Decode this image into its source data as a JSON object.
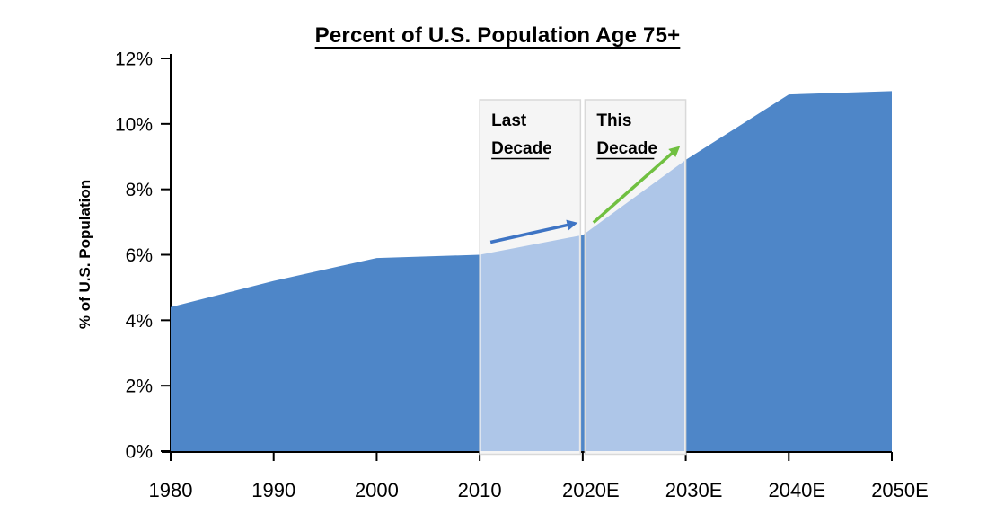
{
  "chart_data": {
    "type": "area",
    "title": "Percent of U.S. Population Age 75+",
    "ylabel": "% of U.S. Population",
    "xlabel": "",
    "categories": [
      "1980",
      "1990",
      "2000",
      "2010",
      "2020E",
      "2030E",
      "2040E",
      "2050E"
    ],
    "values": [
      4.4,
      5.2,
      5.9,
      6.0,
      6.6,
      8.9,
      10.9,
      11.0
    ],
    "ylim": [
      0,
      12
    ],
    "ytick_labels": [
      "0%",
      "2%",
      "4%",
      "6%",
      "8%",
      "10%",
      "12%"
    ],
    "grid": false,
    "legend": "none",
    "annotations": [
      {
        "text_line1": "Last",
        "text_line2": "Decade",
        "from": "2010",
        "to": "2020E",
        "arrow_color": "#3E74C4"
      },
      {
        "text_line1": "This",
        "text_line2": "Decade",
        "from": "2020E",
        "to": "2030E",
        "arrow_color": "#70C041"
      }
    ]
  },
  "colors": {
    "area": "#4E86C8",
    "area_highlighted": "#AEC6E8",
    "highlight_box_fill": "#F5F5F5",
    "highlight_box_border": "#D9D9D9",
    "axis": "#000000",
    "text": "#000000",
    "background": "#FFFFFF"
  }
}
